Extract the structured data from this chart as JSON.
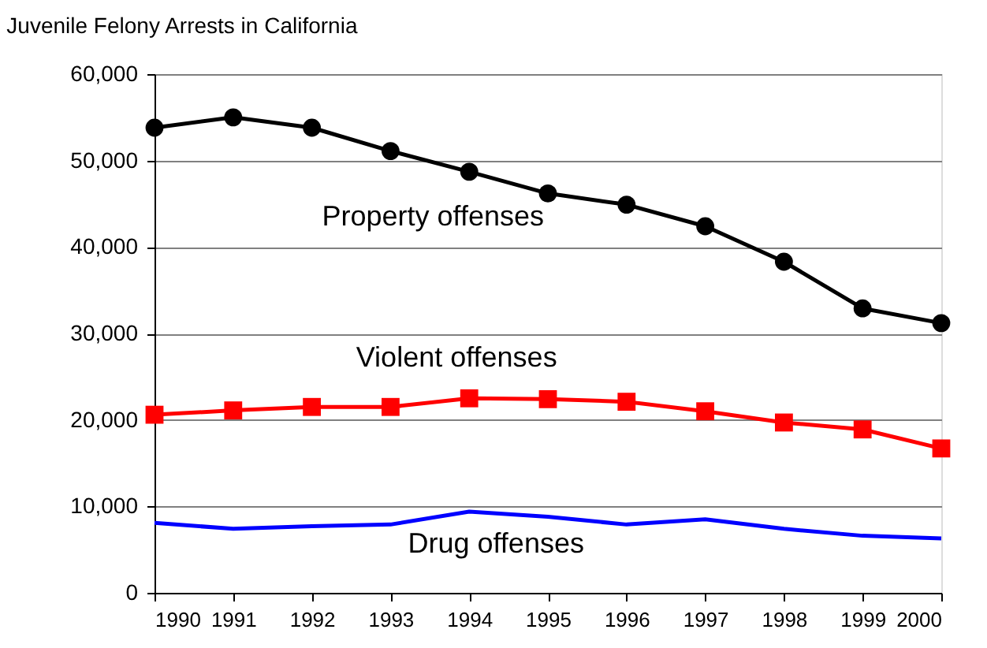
{
  "chart_data": {
    "type": "line",
    "title": "Juvenile Felony Arrests in California",
    "x": [
      1990,
      1991,
      1992,
      1993,
      1994,
      1995,
      1996,
      1997,
      1998,
      1999,
      2000
    ],
    "series": [
      {
        "name": "Property offenses",
        "color": "#000000",
        "marker": "circle",
        "values": [
          53800,
          55000,
          53800,
          51100,
          48700,
          46200,
          44900,
          42400,
          38300,
          32900,
          31200
        ]
      },
      {
        "name": "Violent offenses",
        "color": "#ff0000",
        "marker": "square",
        "values": [
          20600,
          21100,
          21500,
          21500,
          22500,
          22400,
          22100,
          21000,
          19700,
          18900,
          16700
        ]
      },
      {
        "name": "Drug offenses",
        "color": "#0000ff",
        "marker": "none",
        "values": [
          8100,
          7400,
          7700,
          7900,
          9400,
          8800,
          7900,
          8500,
          7400,
          6600,
          6300
        ]
      }
    ],
    "xlim": [
      1990,
      2000
    ],
    "xticks": [
      1990,
      1991,
      1992,
      1993,
      1994,
      1995,
      1996,
      1997,
      1998,
      1999,
      2000
    ],
    "ylim": [
      0,
      60000
    ],
    "yticks": [
      0,
      {
        "value": 10000,
        "label": "10,000"
      },
      {
        "value": 20000,
        "label": "20,000"
      },
      {
        "value": 30000,
        "label": "30,000"
      },
      {
        "value": 40000,
        "label": "40,000"
      },
      {
        "value": 50000,
        "label": "50,000"
      },
      {
        "value": 60000,
        "label": "60,000"
      }
    ],
    "grid": "y",
    "line_style": "solid",
    "legend": false
  }
}
